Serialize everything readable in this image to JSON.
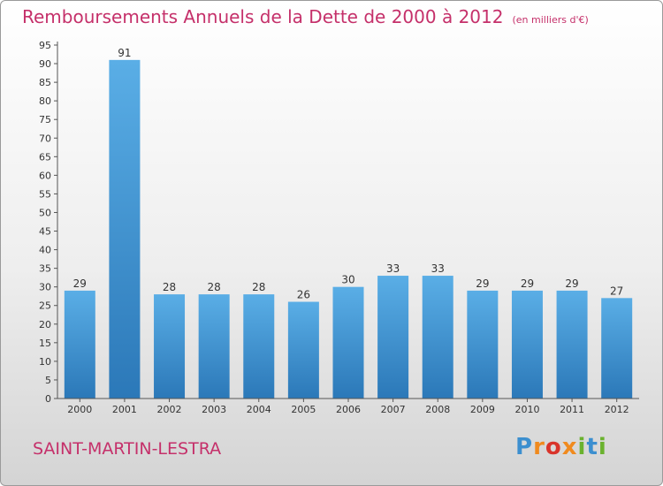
{
  "header": {
    "title": "Remboursements Annuels de la Dette de 2000 à 2012",
    "unit_note": "(en milliers d'€)"
  },
  "footer": {
    "commune": "SAINT-MARTIN-LESTRA",
    "logo": "Proxiti"
  },
  "colors": {
    "title": "#c5306a",
    "bar_light": "#5aaee6",
    "bar_dark": "#2b78b8"
  },
  "chart_data": {
    "type": "bar",
    "title": "Remboursements Annuels de la Dette de 2000 à 2012",
    "subtitle": "(en milliers d'€)",
    "categories": [
      "2000",
      "2001",
      "2002",
      "2003",
      "2004",
      "2005",
      "2006",
      "2007",
      "2008",
      "2009",
      "2010",
      "2011",
      "2012"
    ],
    "values": [
      29,
      91,
      28,
      28,
      28,
      26,
      30,
      33,
      33,
      29,
      29,
      29,
      27
    ],
    "ylim": [
      0,
      95
    ],
    "yticks": [
      0,
      5,
      10,
      15,
      20,
      25,
      30,
      35,
      40,
      45,
      50,
      55,
      60,
      65,
      70,
      75,
      80,
      85,
      90,
      95
    ],
    "grid": false,
    "data_labels": true
  }
}
